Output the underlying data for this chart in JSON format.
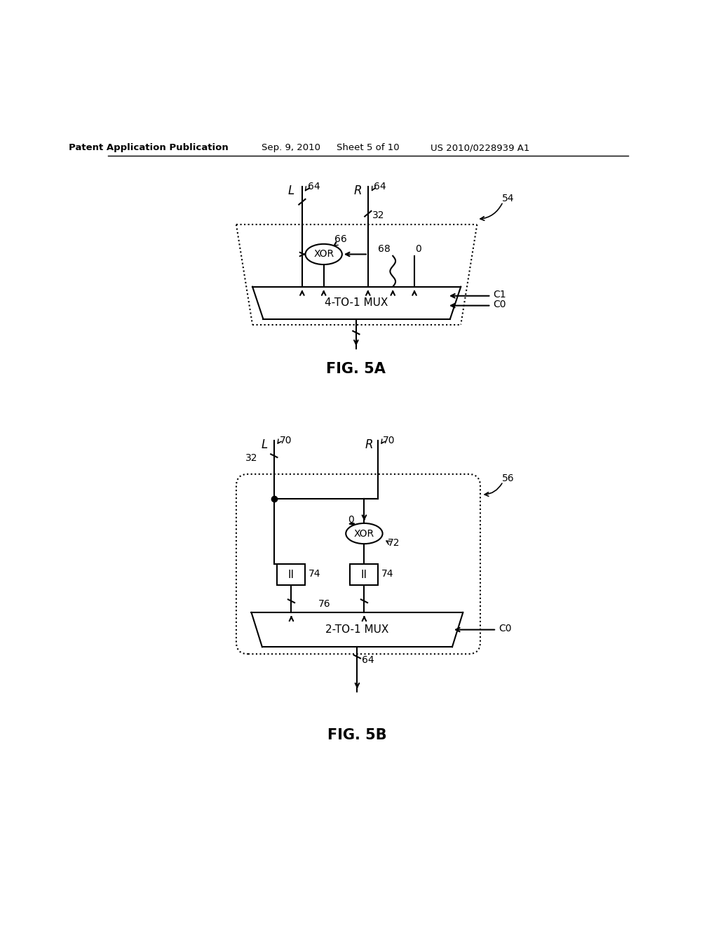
{
  "bg_color": "#ffffff",
  "line_color": "#000000",
  "header_text": "Patent Application Publication",
  "header_date": "Sep. 9, 2010",
  "header_sheet": "Sheet 5 of 10",
  "header_patent": "US 2010/0228939 A1",
  "fig5a_label": "FIG. 5A",
  "fig5b_label": "FIG. 5B",
  "fig5a_ref": "54",
  "fig5b_ref": "56",
  "mux4_label": "4-TO-1 MUX",
  "mux2_label": "2-TO-1 MUX",
  "xor_label": "XOR",
  "buffer_label": "II",
  "label_L": "L",
  "label_R": "R",
  "label_64a": "64",
  "label_64b": "64",
  "label_32a": "32",
  "label_66": "66",
  "label_68": "68",
  "label_0a": "0",
  "label_C1": "C1",
  "label_C0a": "C0",
  "label_70L": "70",
  "label_70R": "70",
  "label_32b": "32",
  "label_72": "72",
  "label_0b": "0",
  "label_74L": "74",
  "label_74R": "74",
  "label_76": "76",
  "label_C0b": "C0",
  "label_64out": "64"
}
